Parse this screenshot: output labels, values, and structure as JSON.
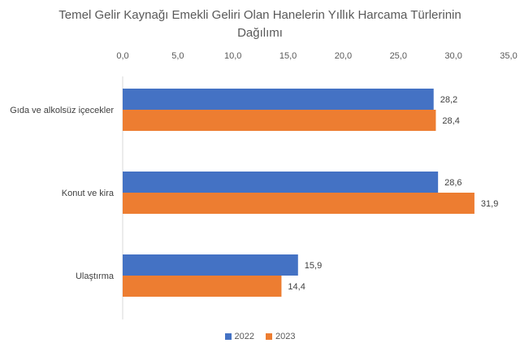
{
  "chart_data": {
    "type": "bar",
    "orientation": "horizontal",
    "title_lines": [
      "Temel Gelir Kaynağı Emekli Geliri Olan Hanelerin Yıllık Harcama Türlerinin",
      "Dağılımı"
    ],
    "categories": [
      "Gıda ve alkolsüz içecekler",
      "Konut ve kira",
      "Ulaştırma"
    ],
    "series": [
      {
        "name": "2022",
        "color": "#4472C4",
        "values": [
          28.2,
          28.6,
          15.9
        ],
        "labels": [
          "28,2",
          "28,6",
          "15,9"
        ]
      },
      {
        "name": "2023",
        "color": "#ED7D31",
        "values": [
          28.4,
          31.9,
          14.4
        ],
        "labels": [
          "28,4",
          "31,9",
          "14,4"
        ]
      }
    ],
    "xlim": [
      0,
      35
    ],
    "ticks": [
      0,
      5,
      10,
      15,
      20,
      25,
      30,
      35
    ],
    "tick_labels": [
      "0,0",
      "5,0",
      "10,0",
      "15,0",
      "20,0",
      "25,0",
      "30,0",
      "35,0"
    ],
    "axis_position": "top",
    "grid": false,
    "legend_position": "bottom"
  }
}
